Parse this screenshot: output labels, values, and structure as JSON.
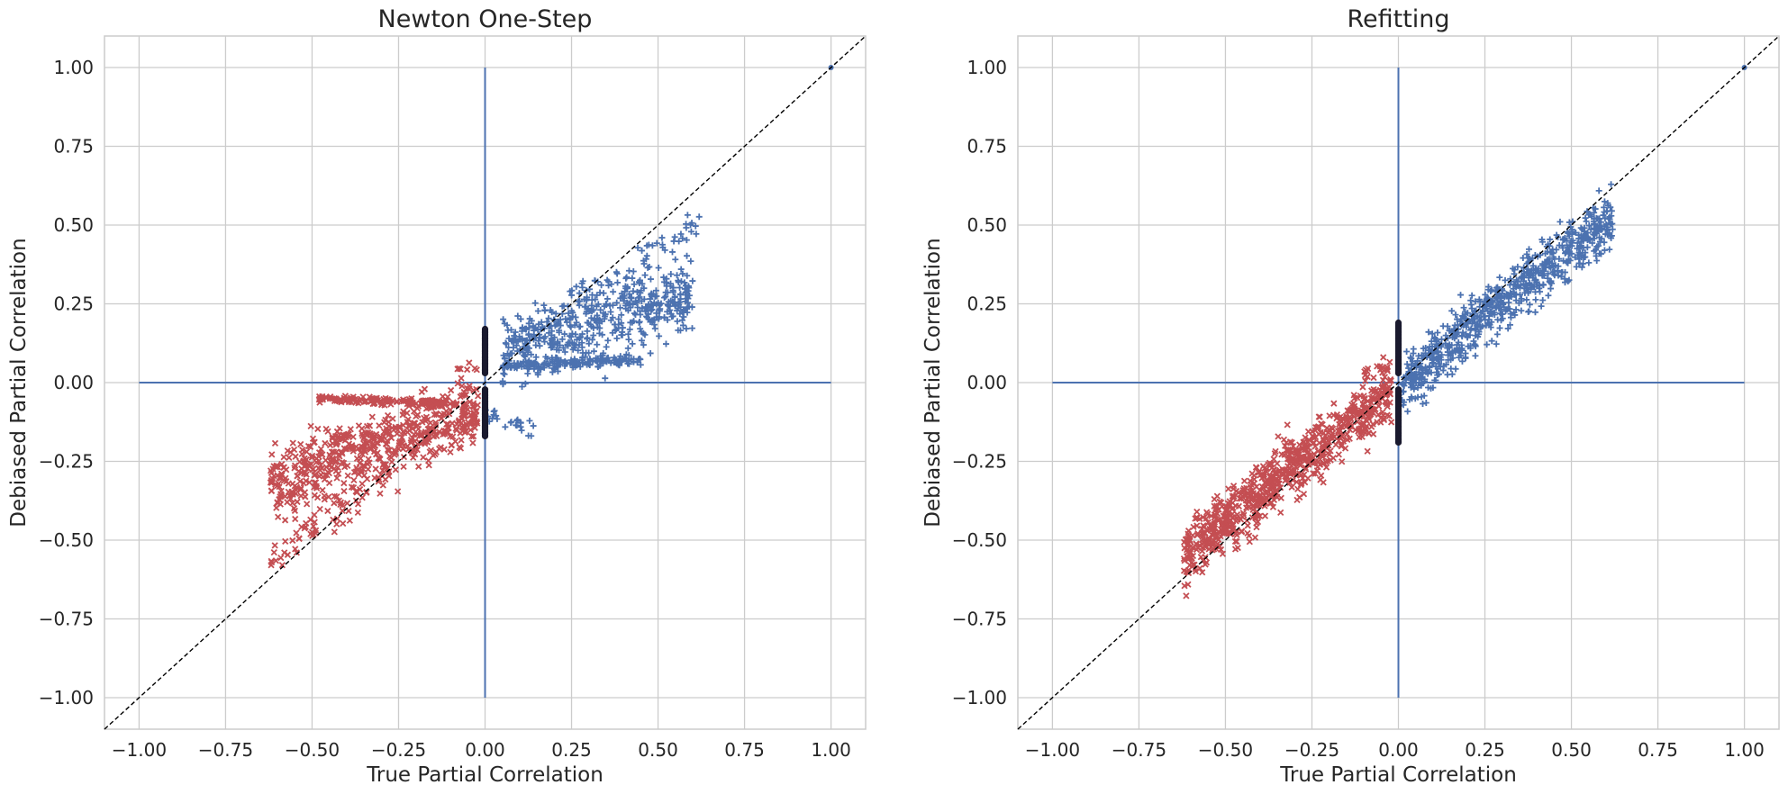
{
  "chart_data": [
    {
      "type": "scatter",
      "title": "Newton One-Step",
      "xlabel": "True Partial Correlation",
      "ylabel": "Debiased Partial Correlation",
      "xlim": [
        -1.1,
        1.1
      ],
      "ylim": [
        -1.1,
        1.1
      ],
      "xticks": [
        "−1.00",
        "−0.75",
        "−0.50",
        "−0.25",
        "0.00",
        "0.25",
        "0.50",
        "0.75",
        "1.00"
      ],
      "yticks": [
        "1.00",
        "0.75",
        "0.50",
        "0.25",
        "0.00",
        "−0.25",
        "−0.50",
        "−0.75",
        "−1.00"
      ],
      "grid": true,
      "reference_line": {
        "style": "dashed",
        "color": "#000000",
        "from": [
          -1.1,
          -1.1
        ],
        "to": [
          1.1,
          1.1
        ]
      },
      "zero_lines": {
        "color": "#4c72b0",
        "horizontal": [
          -1,
          1
        ],
        "vertical": [
          -1,
          1
        ]
      },
      "series": [
        {
          "marker": "plus",
          "color": "#4c72b0",
          "clusters": [
            {
              "x": [
                0.05,
                0.6
              ],
              "slope": 0.33,
              "intercept": 0.08,
              "spread": 0.1,
              "count": 480
            },
            {
              "x": [
                0.05,
                0.45
              ],
              "slope": 0.05,
              "intercept": 0.05,
              "spread": 0.012,
              "count": 160
            },
            {
              "x": [
                0.08,
                0.62
              ],
              "slope": 0.75,
              "intercept": 0.05,
              "spread": 0.05,
              "count": 90
            },
            {
              "x": [
                0.0,
                0.15
              ],
              "slope": -0.4,
              "intercept": -0.1,
              "spread": 0.03,
              "count": 25
            }
          ],
          "outliers": [
            [
              1.0,
              1.0
            ]
          ]
        },
        {
          "marker": "x",
          "color": "#c44e52",
          "clusters": [
            {
              "x": [
                -0.62,
                -0.02
              ],
              "slope": 0.38,
              "intercept": -0.08,
              "spread": 0.09,
              "count": 560
            },
            {
              "x": [
                -0.48,
                -0.08
              ],
              "slope": -0.04,
              "intercept": -0.07,
              "spread": 0.01,
              "count": 150
            },
            {
              "x": [
                -0.62,
                -0.2
              ],
              "slope": 0.9,
              "intercept": -0.02,
              "spread": 0.05,
              "count": 80
            },
            {
              "x": [
                -0.08,
                -0.02
              ],
              "slope": 0,
              "intercept": 0.04,
              "spread": 0.02,
              "count": 8
            }
          ]
        },
        {
          "marker": "dot",
          "color": "#1a1a2e",
          "segments": [
            [
              0,
              0.03,
              0.17
            ],
            [
              0,
              -0.17,
              -0.02
            ]
          ]
        }
      ]
    },
    {
      "type": "scatter",
      "title": "Refitting",
      "xlabel": "True Partial Correlation",
      "ylabel": "Debiased Partial Correlation",
      "xlim": [
        -1.1,
        1.1
      ],
      "ylim": [
        -1.1,
        1.1
      ],
      "xticks": [
        "−1.00",
        "−0.75",
        "−0.50",
        "−0.25",
        "0.00",
        "0.25",
        "0.50",
        "0.75",
        "1.00"
      ],
      "yticks": [
        "1.00",
        "0.75",
        "0.50",
        "0.25",
        "0.00",
        "−0.25",
        "−0.50",
        "−0.75",
        "−1.00"
      ],
      "grid": true,
      "reference_line": {
        "style": "dashed",
        "color": "#000000",
        "from": [
          -1.1,
          -1.1
        ],
        "to": [
          1.1,
          1.1
        ]
      },
      "zero_lines": {
        "color": "#4c72b0",
        "horizontal": [
          -1,
          1
        ],
        "vertical": [
          -1,
          1
        ]
      },
      "series": [
        {
          "marker": "plus",
          "color": "#4c72b0",
          "clusters": [
            {
              "x": [
                0.02,
                0.62
              ],
              "slope": 0.85,
              "intercept": 0.0,
              "spread": 0.075,
              "count": 700
            },
            {
              "x": [
                0.0,
                0.12
              ],
              "slope": 0.7,
              "intercept": -0.03,
              "spread": 0.09,
              "count": 40
            }
          ],
          "outliers": [
            [
              1.0,
              1.0
            ]
          ]
        },
        {
          "marker": "x",
          "color": "#c44e52",
          "clusters": [
            {
              "x": [
                -0.62,
                -0.02
              ],
              "slope": 0.88,
              "intercept": 0.0,
              "spread": 0.08,
              "count": 800
            },
            {
              "x": [
                -0.1,
                -0.02
              ],
              "slope": 0.2,
              "intercept": 0.05,
              "spread": 0.02,
              "count": 12
            }
          ]
        },
        {
          "marker": "dot",
          "color": "#1a1a2e",
          "segments": [
            [
              0,
              0.03,
              0.19
            ],
            [
              0,
              -0.19,
              -0.02
            ]
          ]
        }
      ]
    }
  ]
}
